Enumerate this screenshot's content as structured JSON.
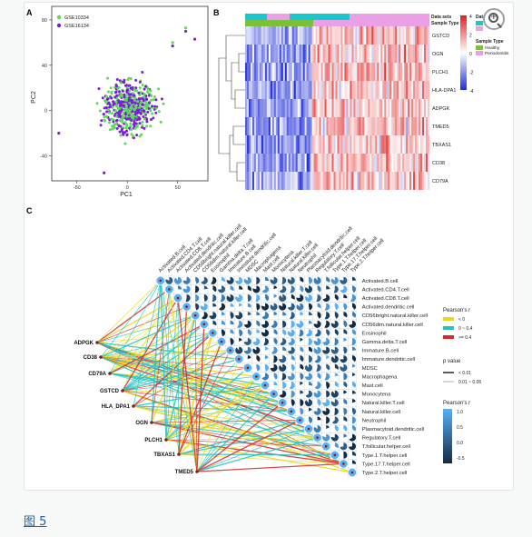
{
  "figure": {
    "caption_link": "图 5",
    "zoom_label": "+"
  },
  "panels": {
    "a": "A",
    "b": "B",
    "c": "C"
  },
  "chart_data": [
    {
      "type": "scatter",
      "panel": "A",
      "xlabel": "PC1",
      "ylabel": "PC2",
      "xticks": [
        -50,
        0,
        50
      ],
      "yticks": [
        -40,
        0,
        40,
        80
      ],
      "xlim": [
        -75,
        80
      ],
      "ylim": [
        -62,
        92
      ],
      "legend": [
        "GSE10334",
        "GSE16134"
      ],
      "legend_placement": "top-left",
      "series_colors": {
        "GSE10334": "#5fd85c",
        "GSE16134": "#7a1fd6"
      },
      "outliers": [
        {
          "series": "GSE10334",
          "x": 58,
          "y": 73
        },
        {
          "series": "GSE16134",
          "x": 58,
          "y": 70
        },
        {
          "series": "GSE10334",
          "x": 45,
          "y": 60
        },
        {
          "series": "GSE16134",
          "x": 45,
          "y": 57
        },
        {
          "series": "GSE16134",
          "x": 67,
          "y": 63
        },
        {
          "series": "GSE16134",
          "x": -23,
          "y": -55
        },
        {
          "series": "GSE16134",
          "x": -68,
          "y": -20
        }
      ]
    },
    {
      "type": "heatmap",
      "panel": "B",
      "rows": [
        "GSTCD",
        "OGN",
        "PLCH1",
        "HLA-DPA1",
        "ADPGK",
        "TMED5",
        "TBXAS1",
        "CD38",
        "CD79A"
      ],
      "legend_titles": [
        "Data sets",
        "Sample Type"
      ],
      "top_annotations": [
        "Data sets",
        "Sample Type"
      ],
      "sample_type_levels": [
        "Healthy",
        "Periodontitis"
      ],
      "sample_type_colors": {
        "Healthy": "#7bbf3a",
        "Periodontitis": "#e9a0e4"
      },
      "dataset_colors": {
        "GSE10334": "#19c8cf",
        "GSE16134": "#e9a0e4"
      },
      "color_scale": {
        "ticks": [
          4,
          2,
          0,
          -2,
          -4
        ],
        "low": "#1f2fd6",
        "mid": "#ffffff",
        "high": "#e0201f"
      }
    },
    {
      "type": "other",
      "panel": "C",
      "description_free": true,
      "columns": [
        "Activated.B.cell",
        "Activated.CD4.T.cell",
        "Activated.CD8.T.cell",
        "Activated.dendritic.cell",
        "CD56bright.natural.killer.cell",
        "CD56dim.natural.killer.cell",
        "Eosinophil",
        "Gamma.delta.T.cell",
        "Immature.B.cell",
        "Immature.dendritic.cell",
        "MDSC",
        "Macrophagena",
        "Mast.cell",
        "Monocytena",
        "Natural.killer.T.cell",
        "Natural.killer.cell",
        "Neutrophil",
        "Plasmacytoid.dendritic.cell",
        "Regulatory.T.cell",
        "T.follicular.helper.cell",
        "Type.1.T.helper.cell",
        "Type.17.T.helper.cell",
        "Type.2.T.helper.cell"
      ],
      "rows": [
        "Activated.B.cell",
        "Activated.CD4.T.cell",
        "Activated.CD8.T.cell",
        "Activated.dendritic.cell",
        "CD56bright.natural.killer.cell",
        "CD56dim.natural.killer.cell",
        "Eosinophil",
        "Gamma.delta.T.cell",
        "Immature.B.cell",
        "Immature.dendritic.cell",
        "MDSC",
        "Macrophagena",
        "Mast.cell",
        "Monocytena",
        "Natural.killer.T.cell",
        "Natural.killer.cell",
        "Neutrophil",
        "Plasmacytoid.dendritic.cell",
        "Regulatory.T.cell",
        "T.follicular.helper.cell",
        "Type.1.T.helper.cell",
        "Type.17.T.helper.cell",
        "Type.2.T.helper.cell"
      ],
      "genes": [
        "ADPGK",
        "CD38",
        "CD79A",
        "GSTCD",
        "HLA_DPA1",
        "OGN",
        "PLCH1",
        "TBXAS1",
        "TMED5"
      ],
      "legend": {
        "mantel_title": "Pearson's r",
        "mantel_levels": [
          {
            "label": "< 0",
            "color": "#e8d81f"
          },
          {
            "label": "0 ~ 0.4",
            "color": "#25c2c2"
          },
          {
            "label": ">= 0.4",
            "color": "#d42a2a"
          }
        ],
        "p_title": "p value",
        "p_levels": [
          "< 0.01",
          "0.01 ~ 0.05"
        ],
        "corr_title": "Pearson's r",
        "corr_ticks": [
          "1.0",
          "0.5",
          "0.0",
          "-0.5"
        ]
      }
    }
  ]
}
